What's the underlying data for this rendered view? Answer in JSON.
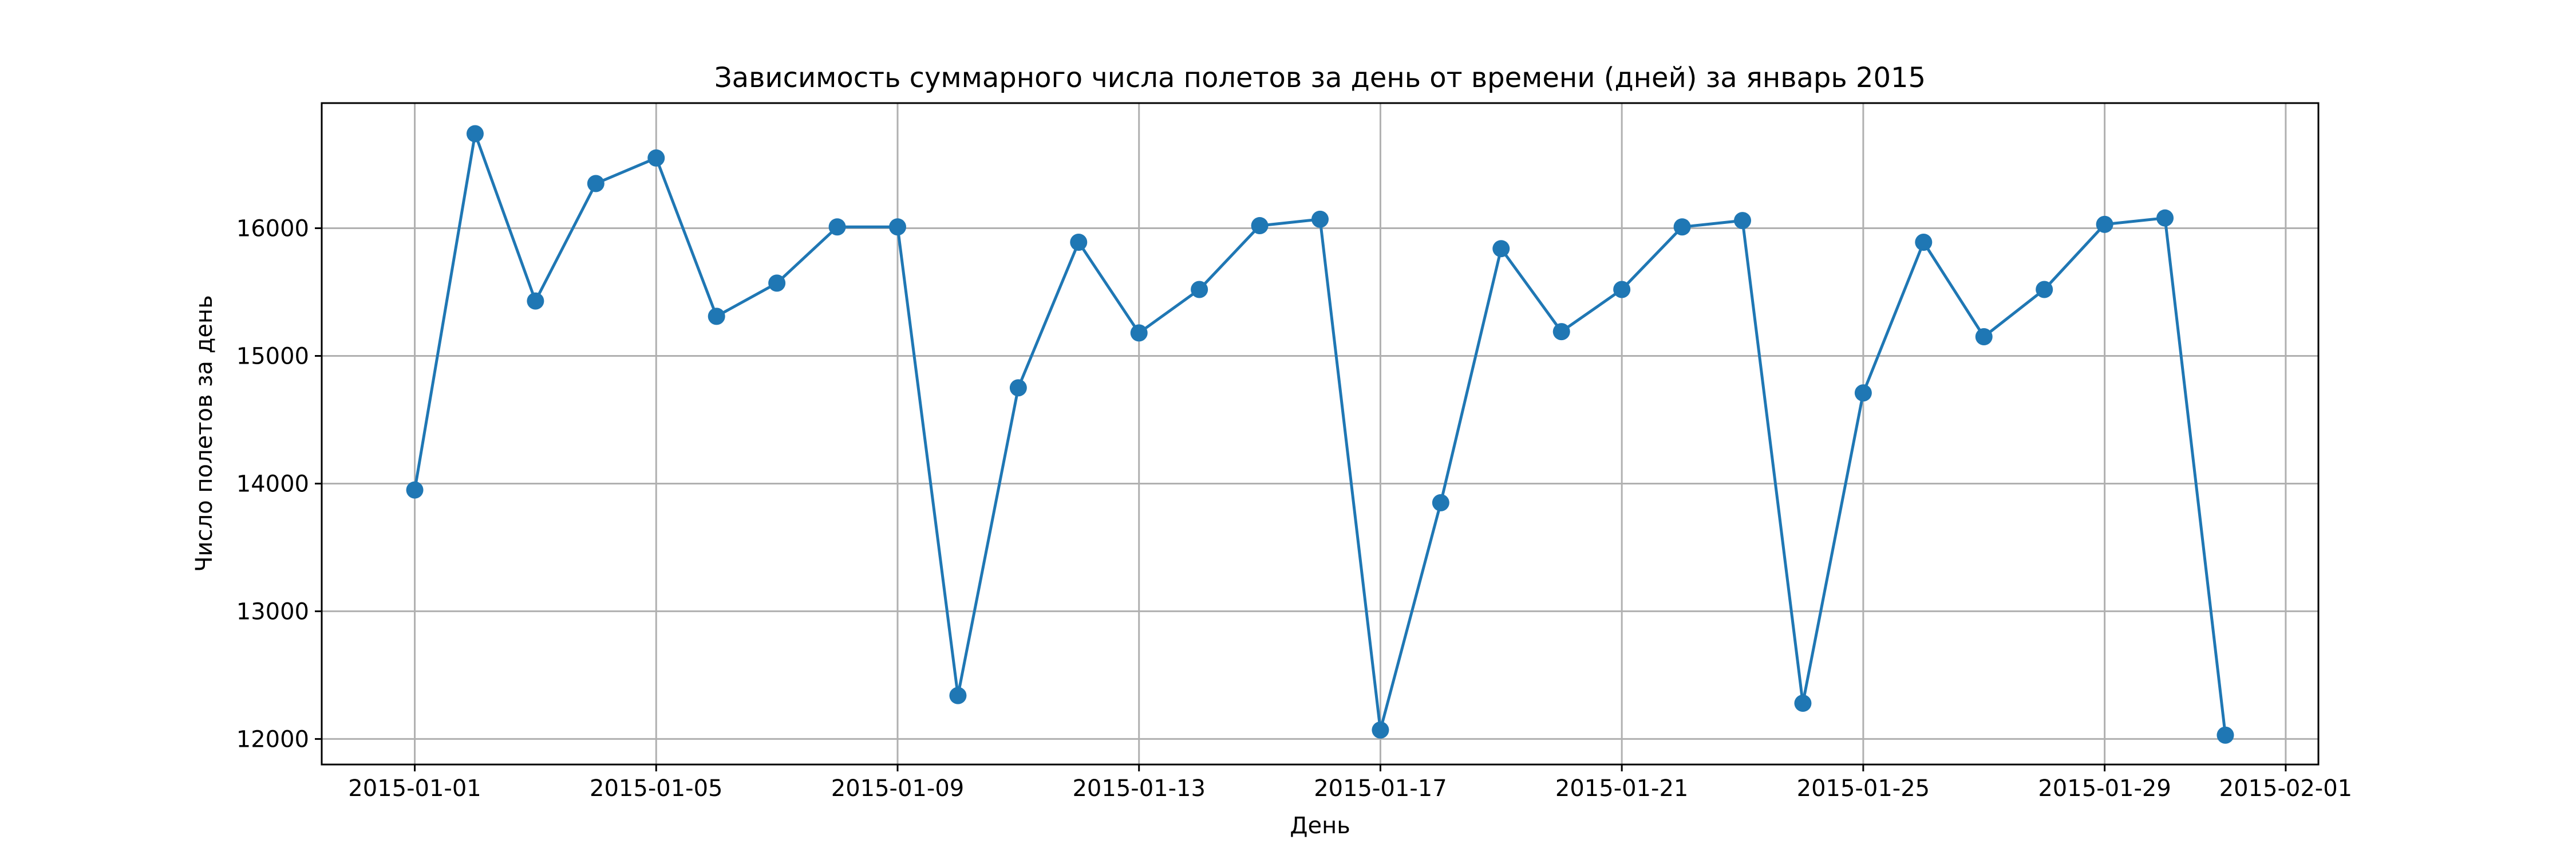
{
  "chart_data": {
    "type": "line",
    "title": "Зависимость суммарного числа полетов за день от времени (дней) за январь 2015",
    "xlabel": "День",
    "ylabel": "Число полетов за день",
    "xlim": [
      "2014-12-30T11:00",
      "2015-02-01T13:00"
    ],
    "ylim": [
      11800,
      16980
    ],
    "grid": true,
    "marker": "circle",
    "color": "#1f77b4",
    "x_ticks": [
      "2015-01-01",
      "2015-01-05",
      "2015-01-09",
      "2015-01-13",
      "2015-01-17",
      "2015-01-21",
      "2015-01-25",
      "2015-01-29",
      "2015-02-01"
    ],
    "y_ticks": [
      12000,
      13000,
      14000,
      15000,
      16000
    ],
    "series": [
      {
        "x": [
          "2015-01-01",
          "2015-01-02",
          "2015-01-03",
          "2015-01-04",
          "2015-01-05",
          "2015-01-06",
          "2015-01-07",
          "2015-01-08",
          "2015-01-09",
          "2015-01-10",
          "2015-01-11",
          "2015-01-12",
          "2015-01-13",
          "2015-01-14",
          "2015-01-15",
          "2015-01-16",
          "2015-01-17",
          "2015-01-18",
          "2015-01-19",
          "2015-01-20",
          "2015-01-21",
          "2015-01-22",
          "2015-01-23",
          "2015-01-24",
          "2015-01-25",
          "2015-01-26",
          "2015-01-27",
          "2015-01-28",
          "2015-01-29",
          "2015-01-30",
          "2015-01-31"
        ],
        "values": [
          13950,
          16740,
          15430,
          16350,
          16550,
          15310,
          15570,
          16010,
          16010,
          12340,
          14750,
          15890,
          15180,
          15520,
          16020,
          16070,
          12070,
          13850,
          15840,
          15190,
          15520,
          16010,
          16060,
          12280,
          14710,
          15890,
          15150,
          15520,
          16030,
          16080,
          12030
        ]
      }
    ]
  }
}
